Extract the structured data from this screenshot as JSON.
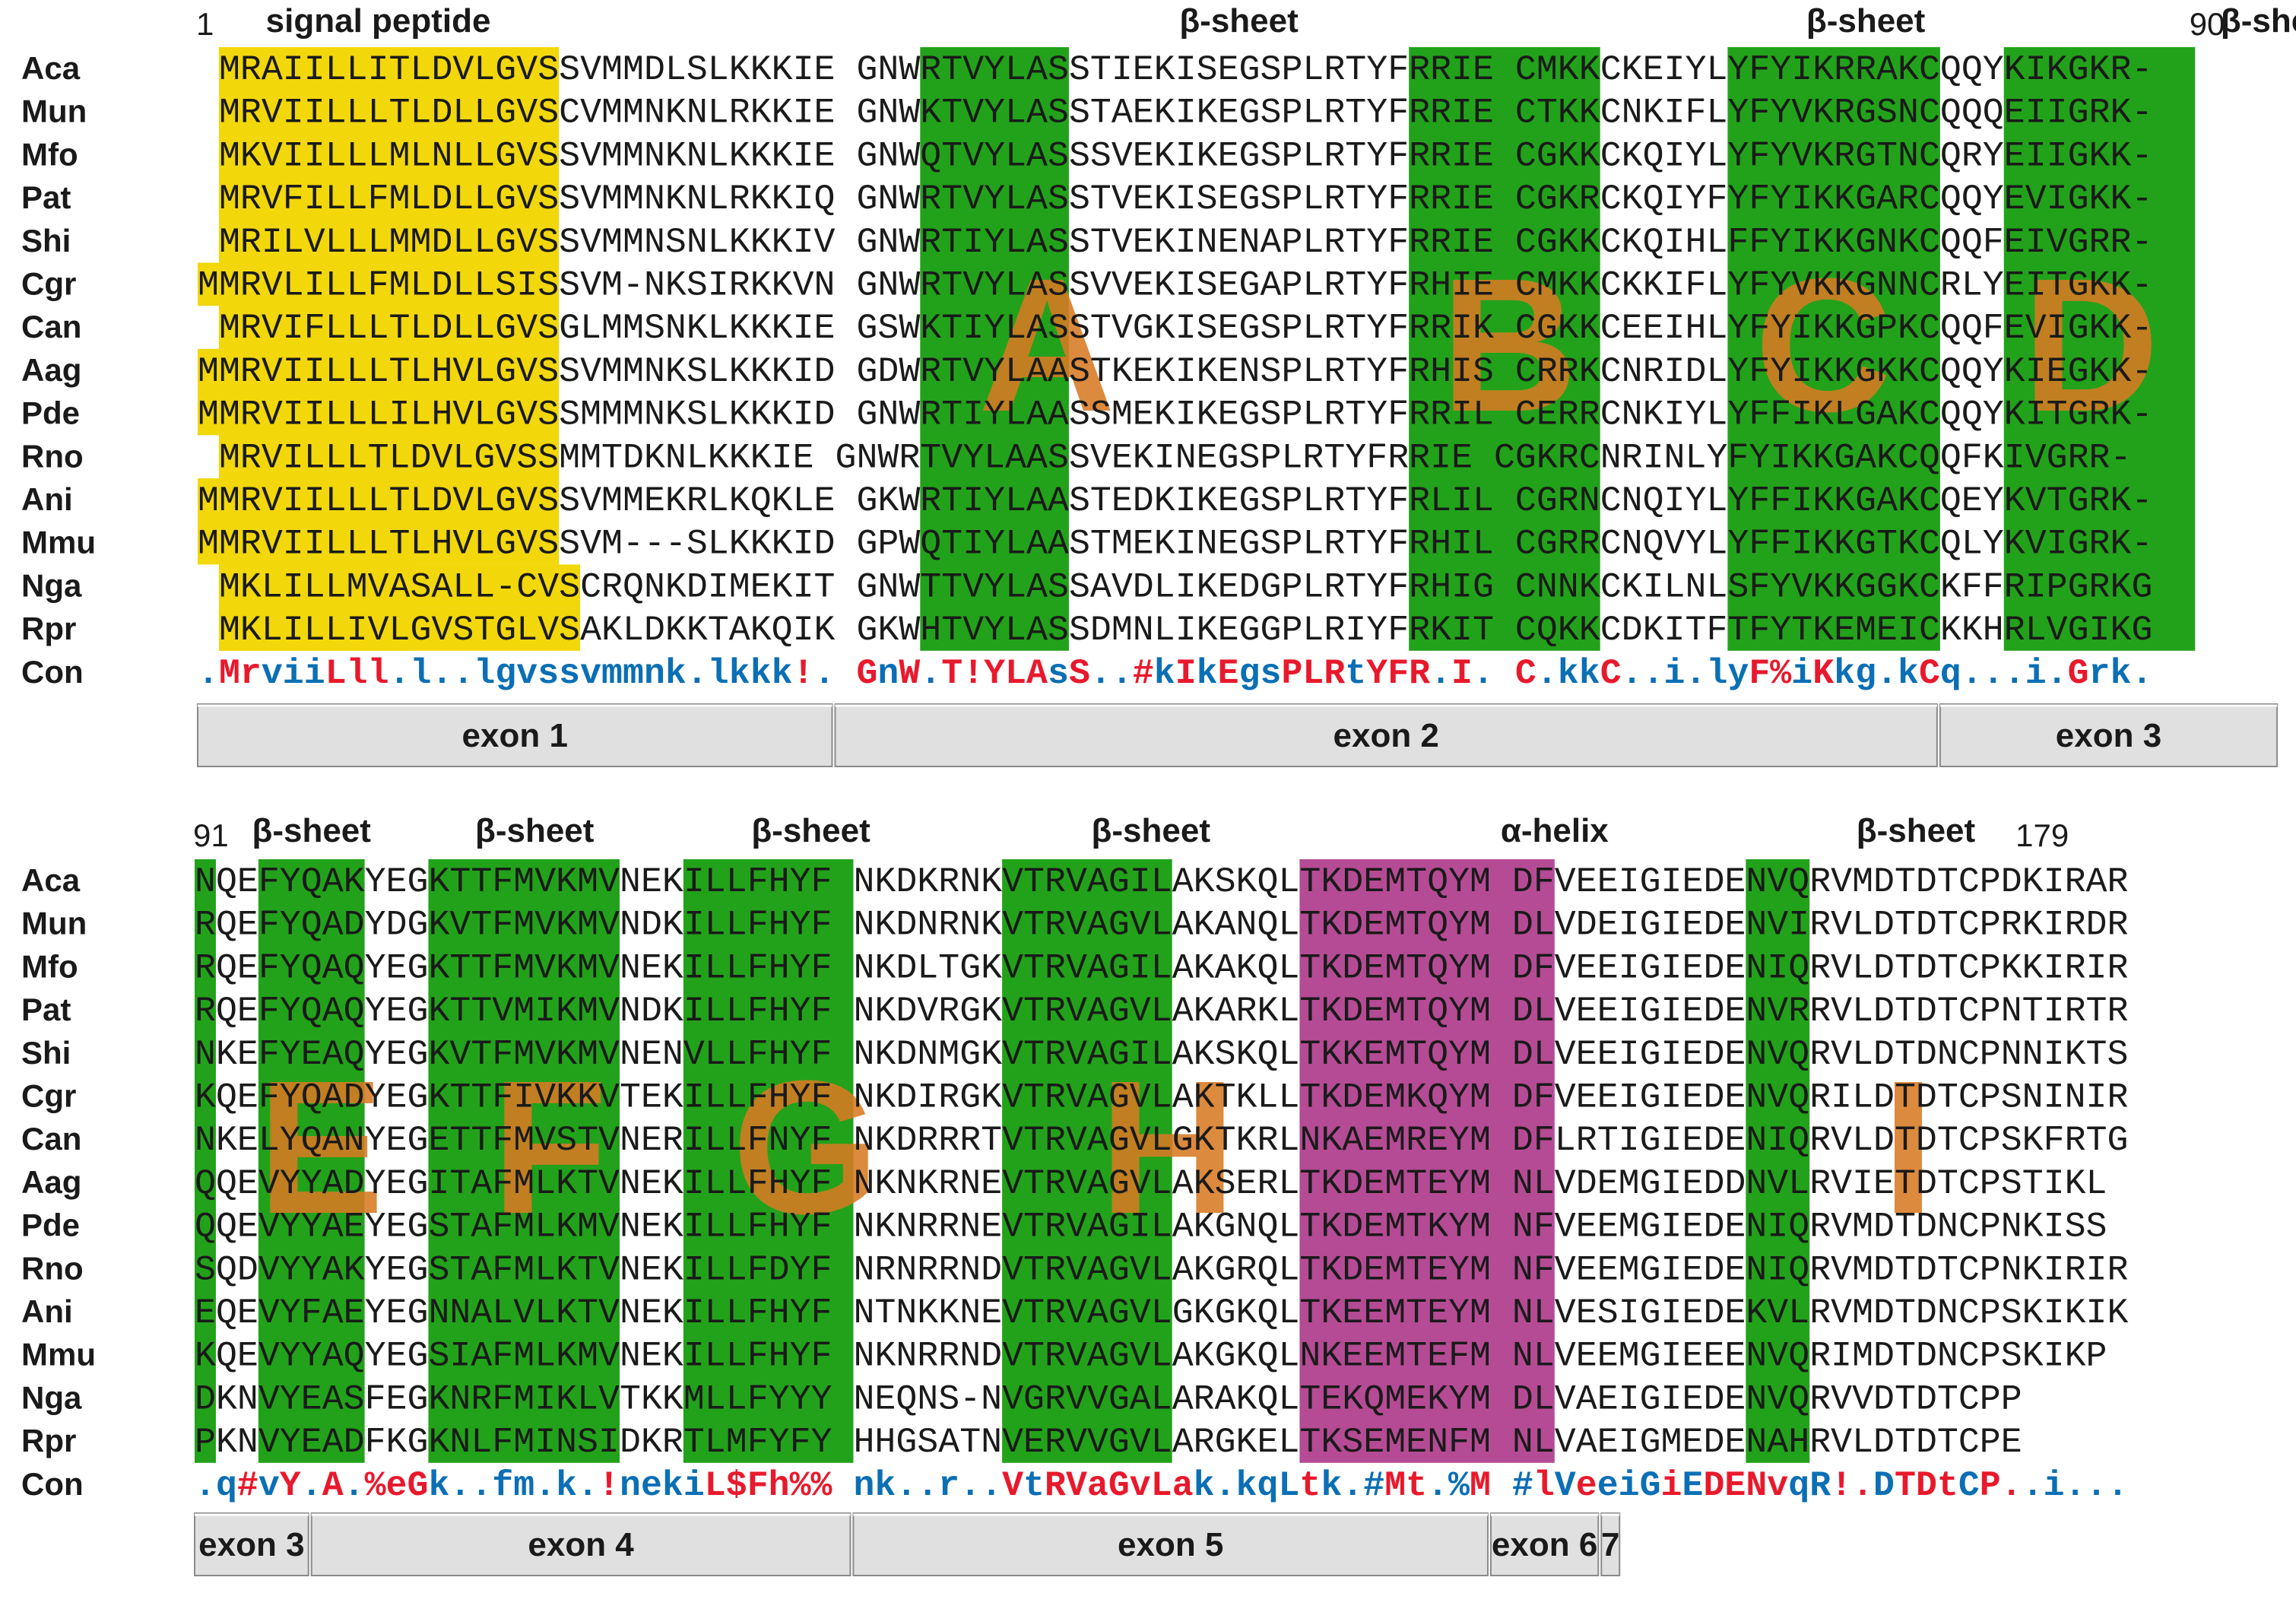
{
  "colors": {
    "signal_peptide": "#f2d70a",
    "beta_sheet": "#22a21a",
    "alpha_helix": "#b54b94",
    "region_letter": "#d77a23",
    "consensus_high": "#e8192c",
    "consensus_low": "#0b6fb5",
    "exon_bar": "#e0e0e0"
  },
  "species": [
    "Aca",
    "Mun",
    "Mfo",
    "Pat",
    "Shi",
    "Cgr",
    "Can",
    "Aag",
    "Pde",
    "Rno",
    "Ani",
    "Mmu",
    "Nga",
    "Rpr"
  ],
  "consensus_label": "Con",
  "blocks": [
    {
      "start_label": "1",
      "end_label": "90",
      "features": [
        {
          "label": "signal peptide",
          "col": 8.5
        },
        {
          "label": "β-sheet",
          "col": 49
        },
        {
          "label": "β-sheet",
          "col": 78.5
        },
        {
          "label": "β-sheet",
          "col": 98
        },
        {
          "label": "β-sheet",
          "col": 116.5
        }
      ],
      "sequences": [
        " MRAIILLITLDVLGVSSVMMDLSLKKKIE GNWRTVYLASSTIEKISEGSPLRTYFRRIE CMKKCKEIYLYFYIKRRAKCQQYKIKGKR-",
        " MRVIILLLTLDLLGVSCVMMNKNLRKKIE GNWKTVYLASSTAEKIKEGSPLRTYFRRIE CTKKCNKIFLYFYVKRGSNCQQQEIIGRK-",
        " MKVIILLLMLNLLGVSSVMMNKNLKKKIE GNWQTVYLASSSVEKIKEGSPLRTYFRRIE CGKKCKQIYLYFYVKRGTNCQRYEIIGKK-",
        " MRVFILLFMLDLLGVSSVMMNKNLRKKIQ GNWRTVYLASSTVEKISEGSPLRTYFRRIE CGKRCKQIYFYFYIKKGARCQQYEVIGKK-",
        " MRILVLLLMMDLLGVSSVMMNSNLKKKIV GNWRTIYLASSTVEKINENAPLRTYFRRIE CGKKCKQIHLFFYIKKGNKCQQFEIVGRR-",
        "MMRVLILLFMLDLLSISSVM-NKSIRKKVN GNWRTVYLASSVVEKISEGAPLRTYFRHIE CMKKCKKIFLYFYVKKGNNCRLYEITGKK-",
        " MRVIFLLLTLDLLGVSGLMMSNKLKKKIE GSWKTIYLASSTVGKISEGSPLRTYFRRIK CGKKCEEIHLYFYIKKGPKCQQFEVIGKK-",
        "MMRVIILLLTLHVLGVSSVMMNKSLKKKID GDWRTVYLAASTKEKIKENSPLRTYFRHIS CRRKCNRIDLYFYIKKGKKCQQYKIEGKK-",
        "MMRVIILLLILHVLGVSSMMMNKSLKKKID GNWRTIYLAASSMEKIKEGSPLRTYFRRIL CERRCNKIYLYFFIKLGAKCQQYKITGRK-",
        " MRVILLLTLDVLGVSSMMTDKNLKKKIE GNWRTVYLAASSVEKINEGSPLRTYFRRIE CGKRCNRINLYFYIKKGAKCQQFKIVGRR-",
        "MMRVIILLLTLDVLGVSSVMMEKRLKQKLE GKWRTIYLAASTEDKIKEGSPLRTYFRLIL CGRNCNQIYLYFFIKKGAKCQEYKVTGRK-",
        "MMRVIILLLTLHVLGVSSVM---SLKKKID GPWQTIYLAASTMEKINEGSPLRTYFRHIL CGRRCNQVYLYFFIKKGTKCQLYKVIGRK-",
        " MKLILLMVASALL-CVSCRQNKDIMEKIT GNWTTVYLASSAVDLIKEDGPLRTYFRHIG CNNKCKILNLSFYVKKGGKCKFFRIPGRKG",
        " MKLILLIVLGVSTGLVSAKLDKKTAKQIK GKWHTVYLASSDMNLIKEGGPLRIYFRKIT CQKKCDKITFTFYTKEMEICKKHRLVGIKG"
      ],
      "consensus": ".MrviiLll.l..lgvssvmmnk.lkkk!. GnW.T!YLAsS..#kIkEgsPLRtYFR.I. C.kkC..i.lyF%iKkg.kCq...i.Grk.",
      "consensus_colors": ".RRBBBRRRBBBBBBBBBBBBBBBBBBBR. RBR.RRRRRBR..RBRBRBBRRRBRRR.R. R.BBR..B.BBRRBRBB.BRB...B.RBB.",
      "exons": [
        {
          "label": "exon 1",
          "from": 0,
          "to": 30
        },
        {
          "label": "exon 2",
          "from": 30,
          "to": 82
        },
        {
          "label": "exon 3",
          "from": 82,
          "to": 98
        }
      ]
    },
    {
      "start_label": "91",
      "end_label": "179",
      "features": [
        {
          "label": "β-sheet",
          "col": 5.5
        },
        {
          "label": "β-sheet",
          "col": 16
        },
        {
          "label": "β-sheet",
          "col": 29
        },
        {
          "label": "β-sheet",
          "col": 45
        },
        {
          "label": "α-helix",
          "col": 64
        },
        {
          "label": "β-sheet",
          "col": 81
        }
      ],
      "sequences": [
        "NQEFYQAKYEGKTTFMVKMVNEKILLFHYF NKDKRNKVTRVAGILAKSKQLTKDEMTQYM DFVEEIGIEDENVQRVMDTDTCPDKIRAR",
        "RQEFYQADYDGKVTFMVKMVNDKILLFHYF NKDNRNKVTRVAGVLAKANQLTKDEMTQYM DLVDEIGIEDENVIRVLDTDTCPRKIRDR",
        "RQEFYQAQYEGKTTFMVKMVNEKILLFHYF NKDLTGKVTRVAGILAKAKQLTKDEMTQYM DFVEEIGIEDENIQRVLDTDTCPKKIRIR",
        "RQEFYQAQYEGKTTVMIKMVNDKILLFHYF NKDVRGKVTRVAGVLAKARKLTKDEMTQYM DLVEEIGIEDENVRRVLDTDTCPNTIRTR",
        "NKEFYEAQYEGKVTFMVKMVNENVLLFHYF NKDNMGKVTRVAGILAKSKQLTKKEMTQYM DLVEEIGIEDENVQRVLDTDNCPNNIKTS",
        "KQEFYQADYEGKTTFIVKKVTEKILLFHYF NKDIRGKVTRVAGVLAKTKLLTKDEMKQYM DFVEEIGIEDENVQRILDTDTCPSNINIR",
        "NKELYQANYEGETTFMVSTVNERILLFNYF NKDRRRTVTRVAGVLGKTKRLNKAEMREYM DFLRTIGIEDENIQRVLDTDTCPSKFRTG",
        "QQEVYYADYEGITAFMLKTVNEKILLFHYF NKNKRNEVTRVAGVLAKSERLTKDEMTEYM NLVDEMGIEDDNVLRVIETDTCPSTIKL",
        "QQEVYYAEYEGSTAFMLKMVNEKILLFHYF NKNRRNEVTRVAGILAKGNQLTKDEMTKYM NFVEEMGIEDENIQRVMDTDNCPNKISS",
        "SQDVYYAKYEGSTAFMLKTVNEKILLFDYF NRNRRNDVTRVAGVLAKGRQLTKDEMTEYM NFVEEMGIEDENIQRVMDTDTCPNKIRIR",
        "EQEVYFAEYEGNNALVLKTVNEKILLFHYF NTNKKNEVTRVAGVLGKGKQLTKEEMTEYM NLVESIGIEDEKVLRVMDTDNCPSKIKIK",
        "KQEVYYAQYEGSIAFMLKMVNEKILLFHYF NKNRRNDVTRVAGVLAKGKQLNKEEMTEFM NLVEEMGIEEENVQRIMDTDNCPSKIKP",
        "DKNVYEASFEGKNRFMIKLVTKKMLLFYYY NEQNS-NVGRVVGALARAKQLTEKQMEKYM DLVAEIGIEDENVQRVVDTDTCPP",
        "PKNVYEADFKGKNLFMINSIDKRTLMFYFY HHGSATNVERVVGVLARGKELTKSEMENFM NLVAEIGMEDENAHRVLDTDTCPE"
      ],
      "consensus": ".q#vY.A.%eGk..fm.k.!nekiL$Fh%% nk..r..VtRVaGvLak.kqLtk.#Mt.%M #lVeeiGiEDENvqR!.DTDtCP..i...",
      "consensus_colors": ".BRBR.R.RRRB..BB.B.RBBBBRRRRRR BB..B..RBRRRRRRRBB.BBRBB.RRB.RR RBRBBBRBRRRRBBRR.RRRBRR..B...",
      "exons": [
        {
          "label": "exon 3",
          "from": 0,
          "to": 5.5
        },
        {
          "label": "exon 4",
          "from": 5.5,
          "to": 31
        },
        {
          "label": "exon 5",
          "from": 31,
          "to": 61
        },
        {
          "label": "exon 6",
          "from": 61,
          "to": 66.2
        },
        {
          "label": "7",
          "from": 66.2,
          "to": 67.2
        }
      ]
    }
  ],
  "region_letters": [
    "A",
    "B",
    "C",
    "D",
    "E",
    "F",
    "G",
    "H",
    "I"
  ]
}
